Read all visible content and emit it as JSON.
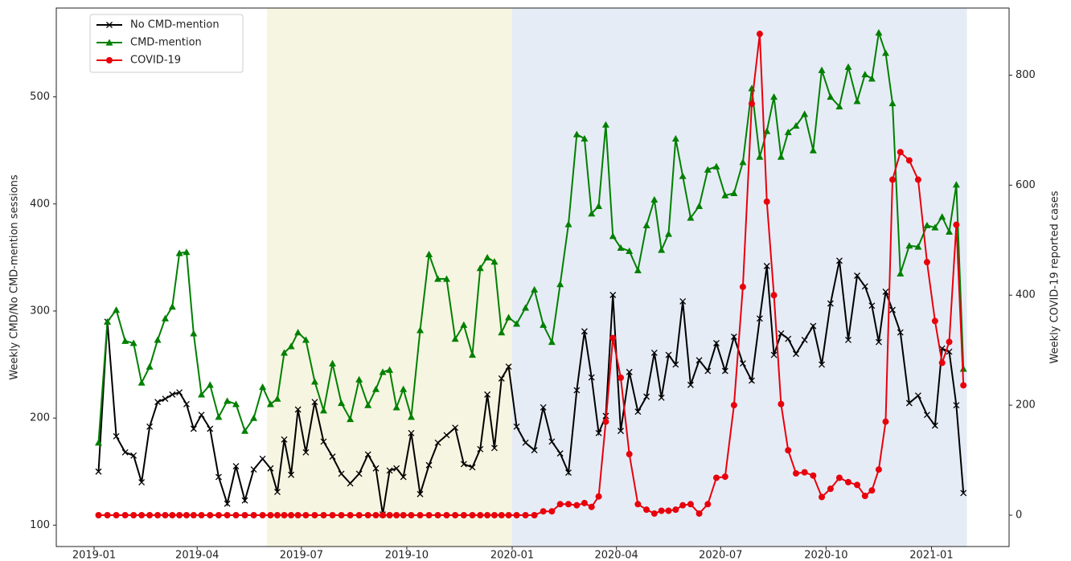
{
  "chart_data": {
    "type": "line",
    "y_label": "Weekly CMD/No CMD-mention sessions",
    "y2_label": "Weekly COVID-19 reported cases",
    "x": [
      "2019-01",
      "2019-01",
      "2019-01",
      "2019-01",
      "2019-02",
      "2019-02",
      "2019-02",
      "2019-02",
      "2019-03",
      "2019-03",
      "2019-03",
      "2019-03",
      "2019-03",
      "2019-04",
      "2019-04",
      "2019-04",
      "2019-04",
      "2019-05",
      "2019-05",
      "2019-05",
      "2019-05",
      "2019-06",
      "2019-06",
      "2019-06",
      "2019-06",
      "2019-06",
      "2019-07",
      "2019-07",
      "2019-07",
      "2019-07",
      "2019-08",
      "2019-08",
      "2019-08",
      "2019-08",
      "2019-09",
      "2019-09",
      "2019-09",
      "2019-09",
      "2019-09",
      "2019-10",
      "2019-10",
      "2019-10",
      "2019-10",
      "2019-11",
      "2019-11",
      "2019-11",
      "2019-11",
      "2019-12",
      "2019-12",
      "2019-12",
      "2019-12",
      "2019-12",
      "2020-01",
      "2020-01",
      "2020-01",
      "2020-01",
      "2020-02",
      "2020-02",
      "2020-02",
      "2020-02",
      "2020-03",
      "2020-03",
      "2020-03",
      "2020-03",
      "2020-03",
      "2020-04",
      "2020-04",
      "2020-04",
      "2020-04",
      "2020-05",
      "2020-05",
      "2020-05",
      "2020-05",
      "2020-05",
      "2020-06",
      "2020-06",
      "2020-06",
      "2020-06",
      "2020-07",
      "2020-07",
      "2020-07",
      "2020-07",
      "2020-08",
      "2020-08",
      "2020-08",
      "2020-08",
      "2020-08",
      "2020-09",
      "2020-09",
      "2020-09",
      "2020-09",
      "2020-10",
      "2020-10",
      "2020-10",
      "2020-10",
      "2020-11",
      "2020-11",
      "2020-11",
      "2020-11",
      "2020-11",
      "2020-12",
      "2020-12",
      "2020-12",
      "2020-12",
      "2021-01",
      "2021-01",
      "2021-01",
      "2021-01",
      "2021-01"
    ],
    "series": [
      {
        "name": "No CMD-mention",
        "color": "#000000",
        "marker": "x",
        "values": [
          150,
          290,
          183,
          168,
          165,
          140,
          192,
          215,
          218,
          222,
          224,
          213,
          190,
          203,
          190,
          145,
          120,
          155,
          123,
          152,
          162,
          153,
          131,
          180,
          147,
          208,
          168,
          215,
          178,
          164,
          148,
          139,
          148,
          166,
          153,
          110,
          151,
          153,
          145,
          186,
          129,
          156,
          177,
          184,
          191,
          157,
          154,
          171,
          222,
          172,
          237,
          248,
          192,
          177,
          170,
          210,
          178,
          167,
          149,
          226,
          281,
          238,
          186,
          202,
          315,
          188,
          243,
          206,
          220,
          261,
          219,
          259,
          250,
          309,
          231,
          254,
          244,
          270,
          244,
          276,
          251,
          235,
          293,
          342,
          259,
          279,
          274,
          260,
          273,
          286,
          250,
          307,
          347,
          273,
          333,
          323,
          305,
          271,
          318,
          301,
          280,
          214,
          221,
          203,
          193,
          265,
          262,
          212,
          130
        ]
      },
      {
        "name": "CMD-mention",
        "color": "#008000",
        "marker": "triangle",
        "values": [
          177,
          290,
          301,
          272,
          270,
          233,
          248,
          273,
          293,
          304,
          354,
          355,
          279,
          222,
          231,
          201,
          216,
          213,
          188,
          200,
          229,
          213,
          218,
          261,
          267,
          280,
          273,
          234,
          207,
          251,
          214,
          199,
          236,
          212,
          227,
          243,
          245,
          210,
          227,
          201,
          282,
          353,
          330,
          330,
          274,
          287,
          259,
          340,
          350,
          346,
          280,
          294,
          288,
          303,
          320,
          287,
          271,
          325,
          381,
          465,
          461,
          391,
          398,
          474,
          370,
          359,
          356,
          338,
          380,
          404,
          357,
          372,
          461,
          426,
          387,
          398,
          432,
          435,
          408,
          410,
          439,
          508,
          444,
          468,
          500,
          444,
          467,
          473,
          484,
          450,
          525,
          500,
          491,
          528,
          496,
          521,
          517,
          560,
          541,
          494,
          335,
          361,
          360,
          380,
          378,
          388,
          374,
          418,
          246
        ]
      },
      {
        "name": "COVID-19",
        "color": "#e8000b",
        "marker": "circle",
        "axis": "y2",
        "values": [
          0,
          0,
          0,
          0,
          0,
          0,
          0,
          0,
          0,
          0,
          0,
          0,
          0,
          0,
          0,
          0,
          0,
          0,
          0,
          0,
          0,
          0,
          0,
          0,
          0,
          0,
          0,
          0,
          0,
          0,
          0,
          0,
          0,
          0,
          0,
          0,
          0,
          0,
          0,
          0,
          0,
          0,
          0,
          0,
          0,
          0,
          0,
          0,
          0,
          0,
          0,
          0,
          0,
          0,
          0,
          7,
          7,
          20,
          20,
          18,
          22,
          15,
          34,
          170,
          322,
          250,
          111,
          20,
          10,
          3,
          8,
          8,
          10,
          18,
          20,
          3,
          20,
          68,
          70,
          200,
          415,
          748,
          875,
          570,
          400,
          202,
          118,
          76,
          78,
          72,
          33,
          48,
          68,
          60,
          55,
          35,
          45,
          83,
          170,
          610,
          660,
          645,
          610,
          460,
          353,
          277,
          315,
          528,
          236
        ]
      }
    ],
    "xticks": [
      "2019-01",
      "2019-04",
      "2019-07",
      "2019-10",
      "2020-01",
      "2020-04",
      "2020-07",
      "2020-10",
      "2021-01"
    ],
    "ylim": [
      80,
      583
    ],
    "yticks": [
      100,
      200,
      300,
      400,
      500
    ],
    "y2lim": [
      -57,
      922
    ],
    "y2ticks": [
      0,
      200,
      400,
      600,
      800
    ],
    "spans": [
      {
        "start": "2019-06",
        "end": "2020-01",
        "color": "#f6f5e1"
      },
      {
        "start": "2020-01",
        "end": "2021-02",
        "color": "#e6ecf6"
      }
    ],
    "legend": "upper left"
  }
}
